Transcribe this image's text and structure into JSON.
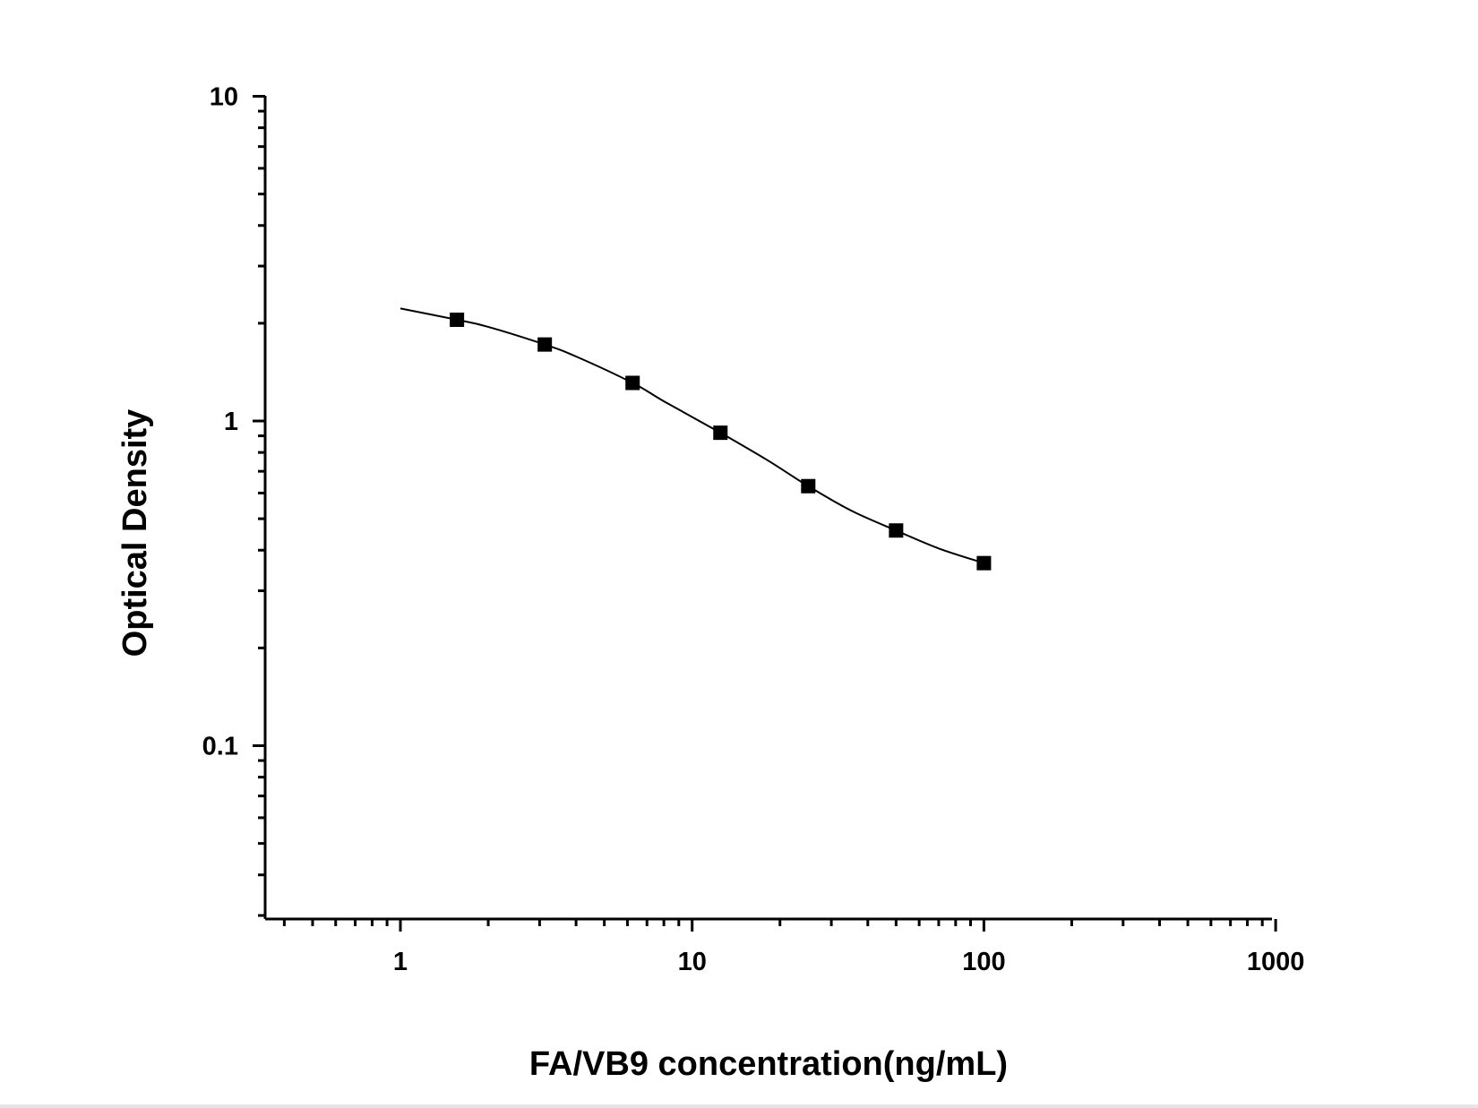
{
  "chart_data": {
    "type": "scatter",
    "title": "",
    "xlabel": "FA/VB9 concentration(ng/mL)",
    "ylabel": "Optical Density",
    "x_scale": "log",
    "y_scale": "log",
    "xlim": [
      0.4,
      1000
    ],
    "ylim": [
      0.03,
      10
    ],
    "x_ticks": [
      {
        "value": 1,
        "label": "1"
      },
      {
        "value": 10,
        "label": "10"
      },
      {
        "value": 100,
        "label": "100"
      },
      {
        "value": 1000,
        "label": "1000"
      }
    ],
    "y_ticks": [
      {
        "value": 0.1,
        "label": "0.1"
      },
      {
        "value": 1,
        "label": "1"
      },
      {
        "value": 10,
        "label": "10"
      }
    ],
    "grid": false,
    "legend": "none",
    "series": [
      {
        "points": [
          {
            "x": 1.5625,
            "y": 2.05
          },
          {
            "x": 3.125,
            "y": 1.72
          },
          {
            "x": 6.25,
            "y": 1.31
          },
          {
            "x": 12.5,
            "y": 0.92
          },
          {
            "x": 25,
            "y": 0.63
          },
          {
            "x": 50,
            "y": 0.46
          },
          {
            "x": 100,
            "y": 0.365
          }
        ],
        "fit_curve": [
          {
            "x": 1,
            "y": 2.22
          },
          {
            "x": 1.5625,
            "y": 2.05
          },
          {
            "x": 2,
            "y": 1.95
          },
          {
            "x": 3.125,
            "y": 1.72
          },
          {
            "x": 4,
            "y": 1.58
          },
          {
            "x": 6.25,
            "y": 1.31
          },
          {
            "x": 8,
            "y": 1.15
          },
          {
            "x": 12.5,
            "y": 0.92
          },
          {
            "x": 18,
            "y": 0.76
          },
          {
            "x": 25,
            "y": 0.63
          },
          {
            "x": 35,
            "y": 0.53
          },
          {
            "x": 50,
            "y": 0.46
          },
          {
            "x": 70,
            "y": 0.405
          },
          {
            "x": 100,
            "y": 0.365
          }
        ],
        "marker": "square",
        "color": "#000000"
      }
    ]
  }
}
